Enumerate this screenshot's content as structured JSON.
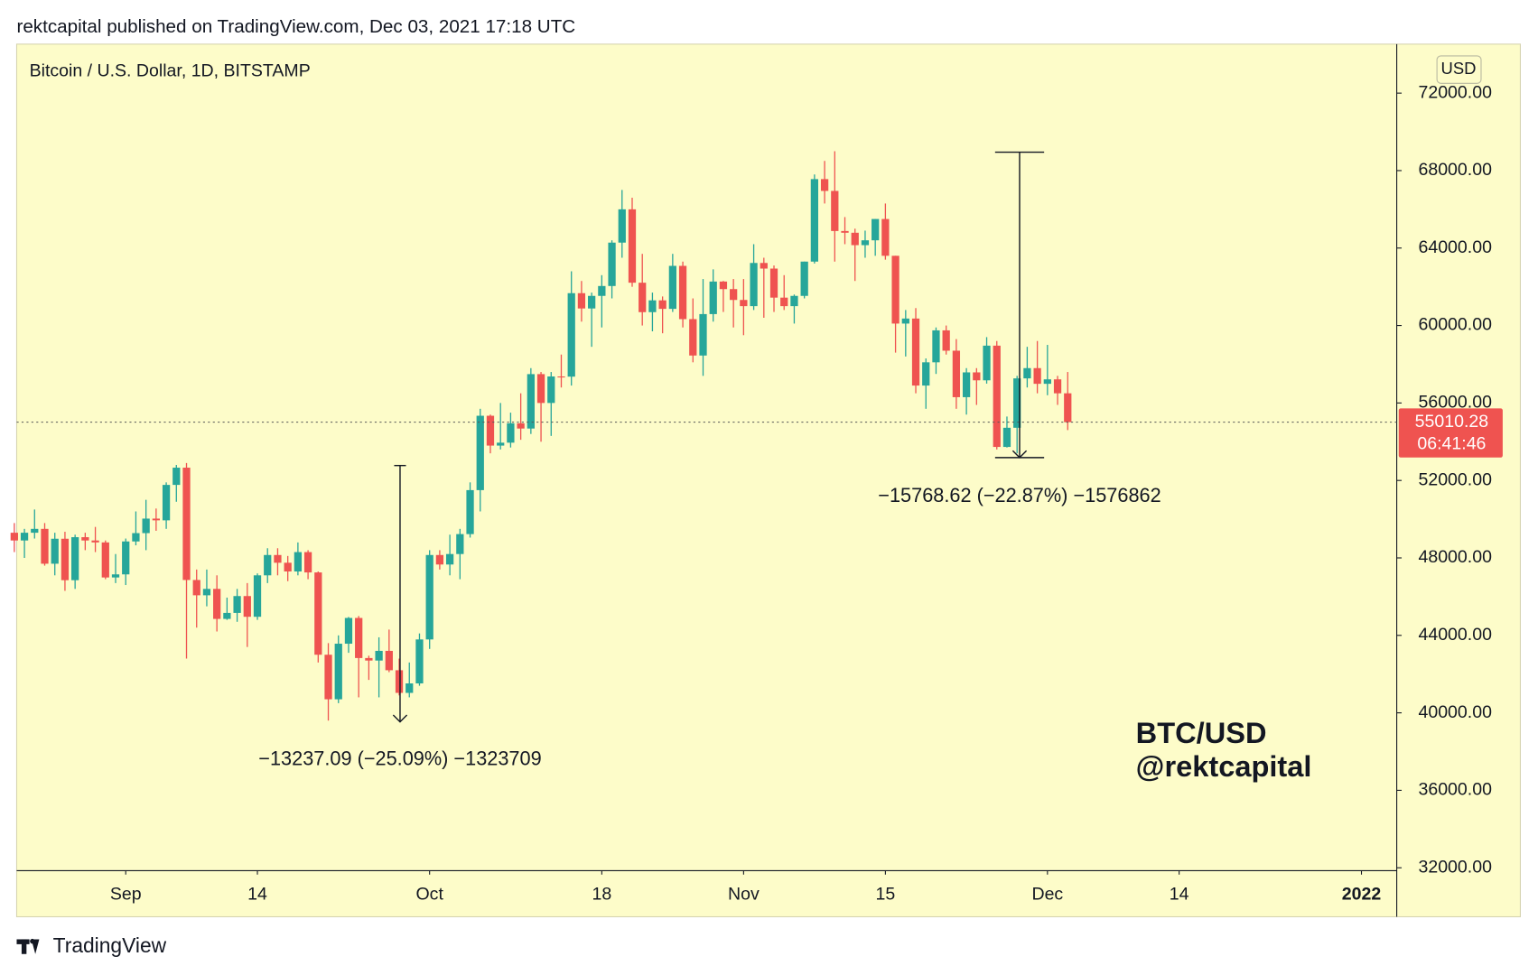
{
  "header": "rektcapital published on TradingView.com, Dec 03, 2021 17:18 UTC",
  "footer": "TradingView",
  "chart_data": {
    "type": "candlestick",
    "title": "Bitcoin / U.S. Dollar, 1D, BITSTAMP",
    "currency": "USD",
    "up_color": "#26a69a",
    "down_color": "#ef5350",
    "x": [
      "2021-08-21",
      "2021-08-22",
      "2021-08-23",
      "2021-08-24",
      "2021-08-25",
      "2021-08-26",
      "2021-08-27",
      "2021-08-28",
      "2021-08-29",
      "2021-08-30",
      "2021-08-31",
      "2021-09-01",
      "2021-09-02",
      "2021-09-03",
      "2021-09-04",
      "2021-09-05",
      "2021-09-06",
      "2021-09-07",
      "2021-09-08",
      "2021-09-09",
      "2021-09-10",
      "2021-09-11",
      "2021-09-12",
      "2021-09-13",
      "2021-09-14",
      "2021-09-15",
      "2021-09-16",
      "2021-09-17",
      "2021-09-18",
      "2021-09-19",
      "2021-09-20",
      "2021-09-21",
      "2021-09-22",
      "2021-09-23",
      "2021-09-24",
      "2021-09-25",
      "2021-09-26",
      "2021-09-27",
      "2021-09-28",
      "2021-09-29",
      "2021-09-30",
      "2021-10-01",
      "2021-10-02",
      "2021-10-03",
      "2021-10-04",
      "2021-10-05",
      "2021-10-06",
      "2021-10-07",
      "2021-10-08",
      "2021-10-09",
      "2021-10-10",
      "2021-10-11",
      "2021-10-12",
      "2021-10-13",
      "2021-10-14",
      "2021-10-15",
      "2021-10-16",
      "2021-10-17",
      "2021-10-18",
      "2021-10-19",
      "2021-10-20",
      "2021-10-21",
      "2021-10-22",
      "2021-10-23",
      "2021-10-24",
      "2021-10-25",
      "2021-10-26",
      "2021-10-27",
      "2021-10-28",
      "2021-10-29",
      "2021-10-30",
      "2021-10-31",
      "2021-11-01",
      "2021-11-02",
      "2021-11-03",
      "2021-11-04",
      "2021-11-05",
      "2021-11-06",
      "2021-11-07",
      "2021-11-08",
      "2021-11-09",
      "2021-11-10",
      "2021-11-11",
      "2021-11-12",
      "2021-11-13",
      "2021-11-14",
      "2021-11-15",
      "2021-11-16",
      "2021-11-17",
      "2021-11-18",
      "2021-11-19",
      "2021-11-20",
      "2021-11-21",
      "2021-11-22",
      "2021-11-23",
      "2021-11-24",
      "2021-11-25",
      "2021-11-26",
      "2021-11-27",
      "2021-11-28",
      "2021-11-29",
      "2021-11-30",
      "2021-12-01",
      "2021-12-02",
      "2021-12-03"
    ],
    "open": [
      49300,
      48900,
      49300,
      49500,
      47700,
      48990,
      46850,
      49070,
      48900,
      48800,
      46990,
      47150,
      48850,
      49280,
      50030,
      49940,
      51770,
      52660,
      46860,
      46070,
      46400,
      44850,
      45160,
      46030,
      44960,
      47100,
      48150,
      47750,
      47300,
      48300,
      47250,
      43000,
      40700,
      43570,
      44900,
      42830,
      42700,
      43200,
      42200,
      41030,
      41520,
      43790,
      48150,
      47660,
      48200,
      49230,
      51500,
      55340,
      53800,
      53950,
      54950,
      54680,
      57490,
      56000,
      57370,
      57360,
      61670,
      60880,
      61530,
      62040,
      64280,
      66000,
      62210,
      60690,
      61300,
      60860,
      63080,
      60330,
      58450,
      60590,
      62270,
      61880,
      61320,
      61000,
      63230,
      62940,
      61440,
      61000,
      61530,
      63300,
      67560,
      66950,
      64880,
      64790,
      64150,
      64400,
      65500,
      63600,
      60100,
      60360,
      56900,
      58100,
      59750,
      58700,
      56300,
      57580,
      57170,
      58960,
      53730,
      54720,
      57270,
      57800,
      56990,
      57220,
      56500
    ],
    "high": [
      49800,
      49500,
      50500,
      49800,
      49300,
      49350,
      49200,
      49300,
      49600,
      48900,
      48200,
      49000,
      50400,
      51000,
      50550,
      51900,
      52800,
      52900,
      47400,
      47400,
      47100,
      45950,
      46400,
      46700,
      47200,
      48500,
      48500,
      48100,
      48800,
      48400,
      47300,
      43600,
      44000,
      44950,
      45000,
      42950,
      43900,
      44300,
      42800,
      42600,
      44100,
      48400,
      48400,
      49200,
      49500,
      51900,
      55700,
      55400,
      56000,
      55500,
      56500,
      57800,
      57600,
      57600,
      58500,
      62800,
      62300,
      61700,
      62600,
      64400,
      67000,
      66600,
      63700,
      61700,
      61500,
      63700,
      63300,
      61400,
      62400,
      62900,
      62300,
      62400,
      62400,
      64200,
      63500,
      63100,
      62600,
      61600,
      63300,
      67800,
      68500,
      69000,
      65600,
      65000,
      64900,
      65500,
      66300,
      63600,
      60800,
      60900,
      58300,
      59900,
      60000,
      59300,
      57800,
      57800,
      59400,
      59200,
      55300,
      57400,
      58900,
      59200,
      59000,
      57400,
      57600
    ],
    "low": [
      48300,
      48000,
      49000,
      47600,
      47100,
      46300,
      46400,
      48400,
      48300,
      46900,
      46700,
      46600,
      48650,
      48400,
      49400,
      49500,
      50900,
      42800,
      44400,
      45500,
      44200,
      44800,
      44700,
      43400,
      44800,
      46700,
      47100,
      46800,
      47100,
      46900,
      42600,
      39600,
      40500,
      43100,
      40800,
      41700,
      40800,
      42100,
      40900,
      40800,
      41400,
      43300,
      47400,
      47100,
      46900,
      49050,
      50400,
      53400,
      53600,
      53700,
      54100,
      54400,
      54000,
      54300,
      56800,
      56900,
      60200,
      58900,
      59900,
      61400,
      63500,
      62000,
      60000,
      59700,
      59600,
      60700,
      59900,
      58100,
      57400,
      60200,
      60700,
      59900,
      59500,
      60800,
      60400,
      60700,
      60800,
      60100,
      61400,
      63200,
      66300,
      63300,
      64200,
      62300,
      63500,
      63600,
      63400,
      58600,
      58400,
      56500,
      55700,
      57500,
      58500,
      55700,
      55400,
      55900,
      57000,
      53600,
      53700,
      53400,
      56800,
      56500,
      56400,
      55900,
      54600
    ],
    "close": [
      48900,
      49300,
      49500,
      47700,
      48990,
      46850,
      49070,
      48900,
      48800,
      46990,
      47150,
      48850,
      49280,
      50030,
      49940,
      51770,
      52660,
      46860,
      46070,
      46400,
      44850,
      45160,
      46030,
      44960,
      47100,
      48150,
      47750,
      47300,
      48300,
      47250,
      43000,
      40700,
      43570,
      44900,
      42830,
      42700,
      43200,
      42200,
      41030,
      41520,
      43790,
      48150,
      47660,
      48200,
      49230,
      51500,
      55340,
      53800,
      53950,
      54950,
      54680,
      57490,
      56000,
      57370,
      57360,
      61670,
      60880,
      61530,
      62040,
      64280,
      66000,
      62210,
      60690,
      61300,
      60860,
      63080,
      60330,
      58450,
      60590,
      62270,
      61880,
      61320,
      61000,
      63230,
      62940,
      61440,
      61000,
      61530,
      63300,
      67560,
      66950,
      64880,
      64790,
      64150,
      64400,
      65500,
      63600,
      60100,
      60360,
      56900,
      58100,
      59750,
      58700,
      56300,
      57580,
      57170,
      58960,
      53730,
      54720,
      57270,
      57800,
      56990,
      57220,
      56500,
      55010.28
    ],
    "last_price": 55010.28,
    "countdown": "06:41:46",
    "xlim": [
      "2021-08-21T06:00",
      "2022-01-04T12:00"
    ],
    "xticks": [
      {
        "value": "2021-09-01",
        "label": "Sep"
      },
      {
        "value": "2021-09-14",
        "label": "14"
      },
      {
        "value": "2021-10-01",
        "label": "Oct"
      },
      {
        "value": "2021-10-18",
        "label": "18"
      },
      {
        "value": "2021-11-01",
        "label": "Nov"
      },
      {
        "value": "2021-11-15",
        "label": "15"
      },
      {
        "value": "2021-12-01",
        "label": "Dec"
      },
      {
        "value": "2021-12-14",
        "label": "14"
      },
      {
        "value": "2022-01-01",
        "label": "2022"
      }
    ],
    "ylim": [
      31850,
      74530
    ],
    "yticks": [
      {
        "value": 32000,
        "label": "32000.00"
      },
      {
        "value": 36000,
        "label": "36000.00"
      },
      {
        "value": 40000,
        "label": "40000.00"
      },
      {
        "value": 44000,
        "label": "44000.00"
      },
      {
        "value": 48000,
        "label": "48000.00"
      },
      {
        "value": 52000,
        "label": "52000.00"
      },
      {
        "value": 56000,
        "label": "56000.00"
      },
      {
        "value": 60000,
        "label": "60000.00"
      },
      {
        "value": 64000,
        "label": "64000.00"
      },
      {
        "value": 68000,
        "label": "68000.00"
      },
      {
        "value": 72000,
        "label": "72000.00"
      }
    ],
    "annotations": [
      {
        "x": "2021-09-28T14:00",
        "from": 52770,
        "to": 39533,
        "label": "−13237.09 (−25.09%) −1323709"
      },
      {
        "x": "2021-11-28T18:00",
        "from": 68949,
        "to": 53180,
        "label": "−15768.62 (−22.87%) −1576862"
      }
    ],
    "watermark": [
      "BTC/USD",
      "@rektcapital"
    ]
  }
}
